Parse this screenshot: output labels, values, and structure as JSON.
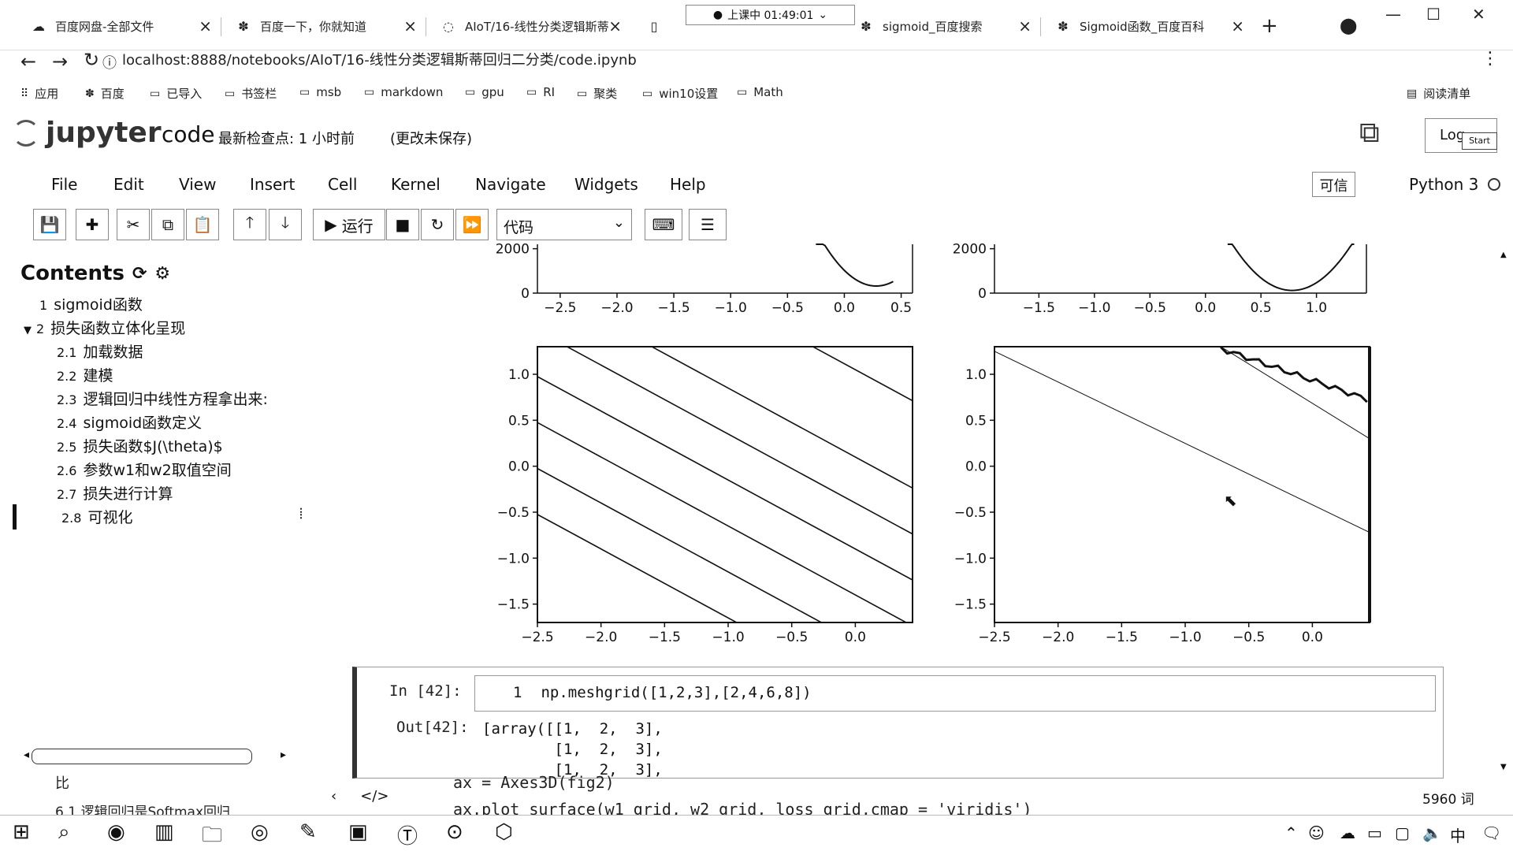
{
  "browser": {
    "tabs": [
      {
        "icon": "cloud-icon",
        "label": "百度网盘-全部文件"
      },
      {
        "icon": "paw-icon",
        "label": "百度一下，你就知道"
      },
      {
        "icon": "loading-icon",
        "label": "AIoT/16-线性分类逻辑斯蒂"
      },
      {
        "icon": "doc-icon",
        "label": ""
      },
      {
        "icon": "paw-icon",
        "label": "sigmoid_百度搜索"
      },
      {
        "icon": "paw-icon",
        "label": "Sigmoid函数_百度百科"
      }
    ],
    "clock": "上课中 01:49:01",
    "url": "localhost:8888/notebooks/AIoT/16-线性分类逻辑斯蒂回归二分类/code.ipynb",
    "bookmarks": [
      "应用",
      "百度",
      "已导入",
      "书签栏",
      "msb",
      "markdown",
      "gpu",
      "RI",
      "聚类",
      "win10设置",
      "Math"
    ],
    "reading_list": "阅读清单"
  },
  "jupyter": {
    "logo": "jupyter",
    "notebook_name": "code",
    "checkpoint": "最新检查点: 1 小时前",
    "unsaved": "(更改未保存)",
    "logout": "Log",
    "start": "Start",
    "menu": [
      "File",
      "Edit",
      "View",
      "Insert",
      "Cell",
      "Kernel",
      "Navigate",
      "Widgets",
      "Help"
    ],
    "trusted": "可信",
    "kernel": "Python 3",
    "toolbar": {
      "run": "运行",
      "cell_type": "代码"
    }
  },
  "toc": {
    "title": "Contents",
    "items": [
      {
        "num": "1",
        "label": "sigmoid函数"
      },
      {
        "num": "2",
        "label": "损失函数立体化呈现"
      },
      {
        "num": "2.1",
        "label": "加载数据"
      },
      {
        "num": "2.2",
        "label": "建模"
      },
      {
        "num": "2.3",
        "label": "逻辑回归中线性方程拿出来:"
      },
      {
        "num": "2.4",
        "label": "sigmoid函数定义"
      },
      {
        "num": "2.5",
        "label": "损失函数$J(\\theta)$"
      },
      {
        "num": "2.6",
        "label": "参数w1和w2取值空间"
      },
      {
        "num": "2.7",
        "label": "损失进行计算"
      },
      {
        "num": "2.8",
        "label": "可视化"
      }
    ]
  },
  "chart_data": [
    {
      "type": "line",
      "x_ticks": [
        "−2.5",
        "−2.0",
        "−1.5",
        "−1.0",
        "−0.5",
        "0.0",
        "0.5"
      ],
      "y_ticks": [
        "2000",
        "0"
      ],
      "xlim": [
        -2.7,
        0.6
      ],
      "ylim": [
        0,
        2200
      ]
    },
    {
      "type": "line",
      "x_ticks": [
        "−1.5",
        "−1.0",
        "−0.5",
        "0.0",
        "0.5",
        "1.0"
      ],
      "y_ticks": [
        "2000",
        "0"
      ],
      "xlim": [
        -1.9,
        1.45
      ],
      "ylim": [
        0,
        2200
      ]
    },
    {
      "type": "contour",
      "x_ticks": [
        "−2.5",
        "−2.0",
        "−1.5",
        "−1.0",
        "−0.5",
        "0.0"
      ],
      "y_ticks": [
        "1.0",
        "0.5",
        "0.0",
        "−0.5",
        "−1.0",
        "−1.5"
      ],
      "xlim": [
        -2.5,
        0.45
      ],
      "ylim": [
        -1.7,
        1.3
      ]
    },
    {
      "type": "contour",
      "x_ticks": [
        "−2.5",
        "−2.0",
        "−1.5",
        "−1.0",
        "−0.5",
        "0.0"
      ],
      "y_ticks": [
        "1.0",
        "0.5",
        "0.0",
        "−0.5",
        "−1.0",
        "−1.5"
      ],
      "xlim": [
        -2.5,
        0.45
      ],
      "ylim": [
        -1.7,
        1.3
      ]
    }
  ],
  "cell": {
    "in_prompt": "In  [42]:",
    "line_no": "1",
    "code": "np.meshgrid([1,2,3],[2,4,6,8])",
    "out_prompt": "Out[42]:",
    "output": "[array([[1,  2,  3],\n        [1,  2,  3],\n        [1,  2,  3],"
  },
  "background": {
    "code_lines": "ax = Axes3D(fig2)\nax.plot_surface(w1_grid, w2_grid, loss_grid,cmap = 'viridis')",
    "left_text": "6.1  逻辑回归是Softmax回归",
    "left_char": "比",
    "word_count": "5960 词"
  }
}
